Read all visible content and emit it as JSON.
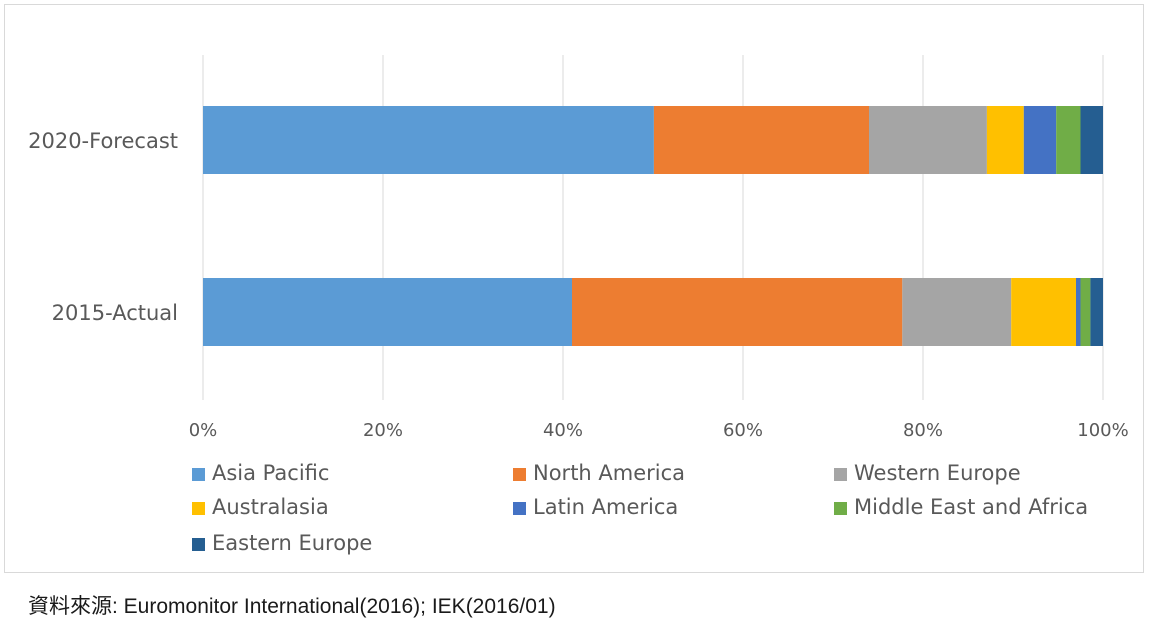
{
  "chart_data": {
    "type": "bar",
    "orientation": "horizontal",
    "stacking": "percent",
    "categories": [
      "2020-Forecast",
      "2015-Actual"
    ],
    "series": [
      {
        "name": "Asia Pacific",
        "color": "#5B9BD5",
        "values": [
          50.1,
          41.0
        ]
      },
      {
        "name": "North America",
        "color": "#ED7D31",
        "values": [
          23.9,
          36.7
        ]
      },
      {
        "name": "Western Europe",
        "color": "#A5A5A5",
        "values": [
          13.1,
          12.1
        ]
      },
      {
        "name": "Australasia",
        "color": "#FFC000",
        "values": [
          4.1,
          7.2
        ]
      },
      {
        "name": "Latin America",
        "color": "#4472C4",
        "values": [
          3.6,
          0.5
        ]
      },
      {
        "name": "Middle East and Africa",
        "color": "#70AD47",
        "values": [
          2.7,
          1.1
        ]
      },
      {
        "name": "Eastern Europe",
        "color": "#255E91",
        "values": [
          2.5,
          1.4
        ]
      }
    ],
    "xlim": [
      0,
      100
    ],
    "x_ticks": [
      "0%",
      "20%",
      "40%",
      "60%",
      "80%",
      "100%"
    ],
    "grid": "vertical",
    "legend_position": "bottom",
    "title": "",
    "xlabel": "",
    "ylabel": ""
  },
  "source_note": "資料來源: Euromonitor International(2016); IEK(2016/01)"
}
